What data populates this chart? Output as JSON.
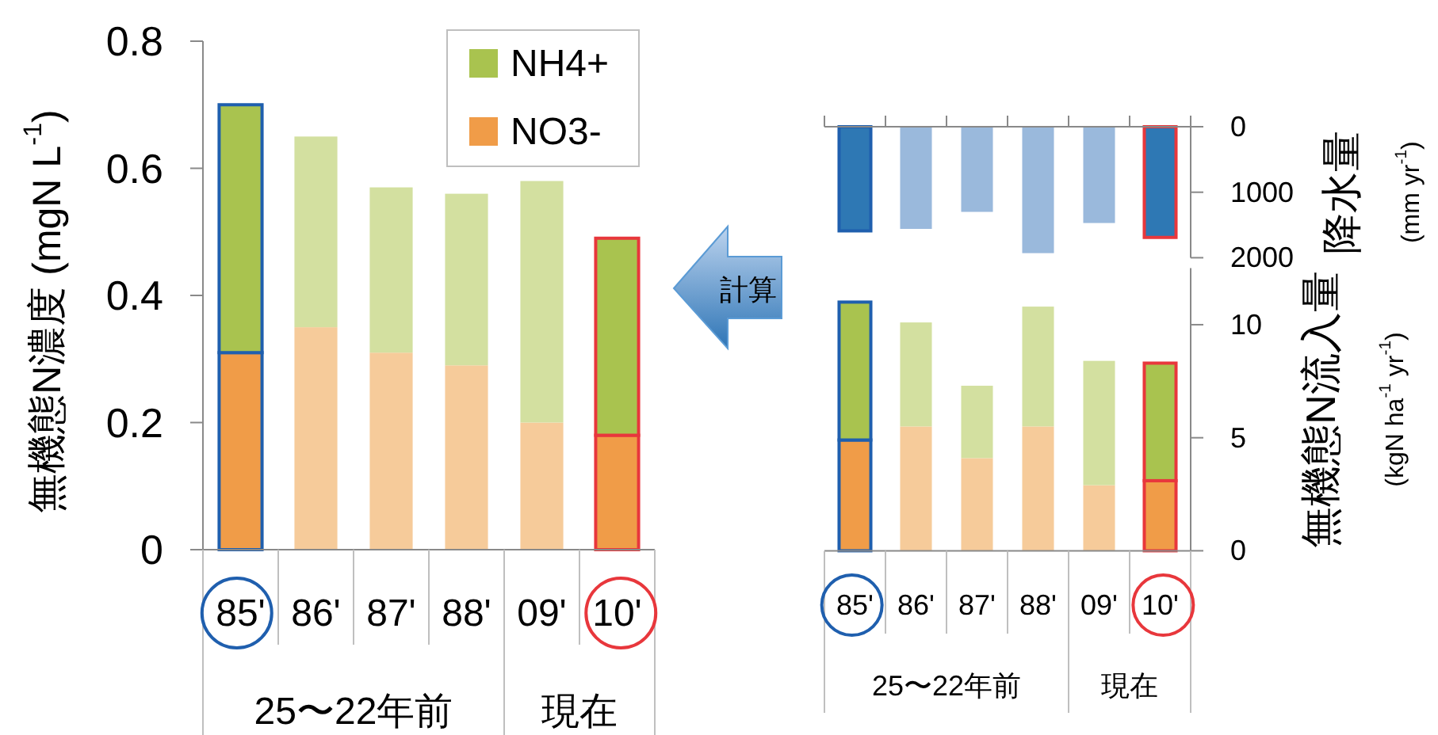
{
  "chart_data": [
    {
      "type": "bar",
      "stacked": true,
      "categories": [
        "85'",
        "86'",
        "87'",
        "88'",
        "09'",
        "10'"
      ],
      "ylabel": "無機態N濃度 (mgN L$^{-1}$)",
      "ylim": [
        0,
        0.8
      ],
      "yticks": [
        0,
        0.2,
        0.4,
        0.6,
        0.8
      ],
      "legend": "top right",
      "annotations": [
        "25〜22年前",
        "現在"
      ],
      "series": [
        {
          "name": "NO3-",
          "color": "#f09c48",
          "colors": [
            "#f09c48",
            "#f6cb9a",
            "#f6cb9a",
            "#f6cb9a",
            "#f6cb9a",
            "#f09c48"
          ],
          "values": [
            0.31,
            0.35,
            0.31,
            0.29,
            0.2,
            0.18
          ]
        },
        {
          "name": "NH4+",
          "color": "#a9c34f",
          "colors": [
            "#a9c34f",
            "#d3e0a0",
            "#d3e0a0",
            "#d3e0a0",
            "#d3e0a0",
            "#a9c34f"
          ],
          "values": [
            0.39,
            0.3,
            0.26,
            0.27,
            0.38,
            0.31
          ]
        }
      ]
    },
    {
      "type": "bar",
      "categories": [
        null,
        null,
        null,
        null,
        null,
        null
      ],
      "ylabel": "降水量 (mm yr$^{-1}$)",
      "ylim": [
        2000,
        0
      ],
      "yticks": [
        0,
        1000,
        2000
      ],
      "tick_labels": "y",
      "annotations": [
        "計算"
      ],
      "colors": [
        "#2e78b4",
        "#9ab9dc",
        "#9ab9dc",
        "#9ab9dc",
        "#9ab9dc",
        "#2e78b4"
      ],
      "values": [
        1590,
        1560,
        1300,
        1930,
        1470,
        1690
      ]
    },
    {
      "type": "bar",
      "stacked": true,
      "categories": [
        "85'",
        "86'",
        "87'",
        "88'",
        "09'",
        "10'"
      ],
      "ylabel": "無機態N流入量 (kgN ha$^{-1}$ yr$^{-1}$)",
      "ylim": [
        0,
        12.5
      ],
      "yticks": [
        0,
        5,
        10
      ],
      "annotations": [
        "25〜22年前",
        "現在"
      ],
      "series": [
        {
          "colors": [
            "#f09c48",
            "#f6cb9a",
            "#f6cb9a",
            "#f6cb9a",
            "#f6cb9a",
            "#f09c48"
          ],
          "values": [
            4.9,
            5.5,
            4.1,
            5.5,
            2.9,
            3.1
          ]
        },
        {
          "colors": [
            "#a9c34f",
            "#d3e0a0",
            "#d3e0a0",
            "#d3e0a0",
            "#d3e0a0",
            "#a9c34f"
          ],
          "values": [
            6.1,
            4.6,
            3.2,
            5.3,
            5.5,
            5.2
          ]
        }
      ]
    }
  ]
}
